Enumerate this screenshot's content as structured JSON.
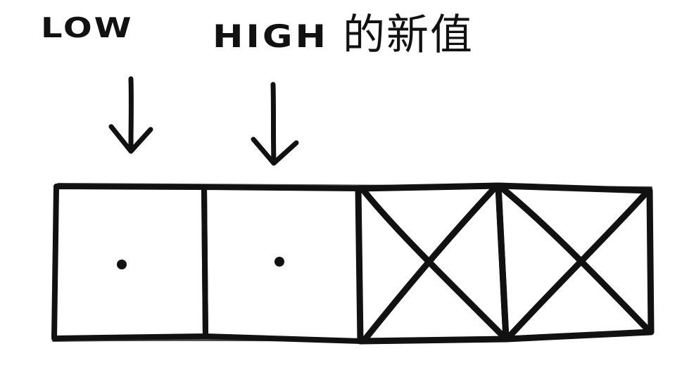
{
  "labels": {
    "low": "LOW",
    "high": "HIGH",
    "high_suffix": "的新值"
  },
  "cells": [
    {
      "index": 0,
      "state": "dot"
    },
    {
      "index": 1,
      "state": "dot"
    },
    {
      "index": 2,
      "state": "crossed"
    },
    {
      "index": 3,
      "state": "crossed"
    }
  ],
  "colors": {
    "ink": "#111111",
    "background": "#ffffff"
  }
}
